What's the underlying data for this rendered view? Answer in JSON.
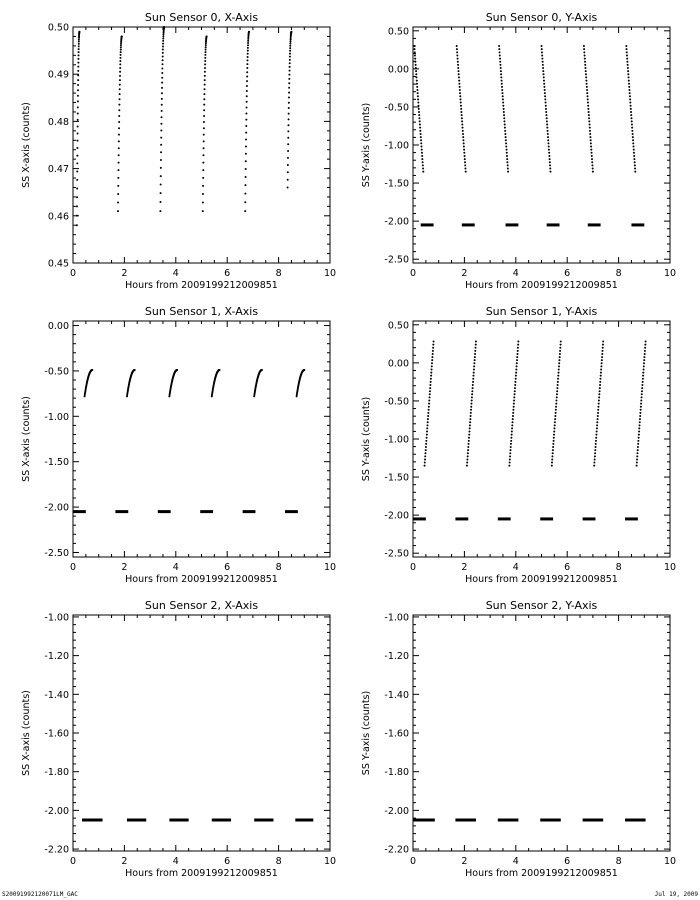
{
  "footer": {
    "left": "S20091992120071LM_GAC",
    "right": "Jul 19, 2009"
  },
  "chart_data": [
    {
      "type": "scatter",
      "title": "Sun Sensor 0, X-Axis",
      "xlabel": "Hours from 2009199212009851",
      "ylabel": "SS X-axis (counts)",
      "xlim": [
        0,
        10
      ],
      "ylim": [
        0.45,
        0.5
      ],
      "x_ticks": [
        "0",
        "2",
        "4",
        "6",
        "8",
        "10"
      ],
      "y_ticks": [
        "0.45",
        "0.46",
        "0.47",
        "0.48",
        "0.49",
        "0.50"
      ],
      "series": [
        {
          "kind": "arc",
          "segments": [
            {
              "x_start": 0.15,
              "x_end": 0.25,
              "y_start": 0.458,
              "y_end": 0.499
            },
            {
              "x_start": 1.75,
              "x_end": 1.9,
              "y_start": 0.461,
              "y_end": 0.498
            },
            {
              "x_start": 3.4,
              "x_end": 3.55,
              "y_start": 0.461,
              "y_end": 0.5
            },
            {
              "x_start": 5.05,
              "x_end": 5.2,
              "y_start": 0.461,
              "y_end": 0.498
            },
            {
              "x_start": 6.7,
              "x_end": 6.85,
              "y_start": 0.461,
              "y_end": 0.499
            },
            {
              "x_start": 8.35,
              "x_end": 8.5,
              "y_start": 0.466,
              "y_end": 0.499
            }
          ]
        }
      ]
    },
    {
      "type": "scatter",
      "title": "Sun Sensor 0, Y-Axis",
      "xlabel": "Hours from 2009199212009851",
      "ylabel": "SS Y-axis (counts)",
      "xlim": [
        0,
        10
      ],
      "ylim": [
        -2.55,
        0.55
      ],
      "x_ticks": [
        "0",
        "2",
        "4",
        "6",
        "8",
        "10"
      ],
      "y_ticks": [
        "-2.50",
        "-2.00",
        "-1.50",
        "-1.00",
        "-0.50",
        "0.00",
        "0.50"
      ],
      "series": [
        {
          "kind": "line",
          "segments": [
            {
              "x_start": 0.05,
              "x_end": 0.4,
              "y_start": 0.3,
              "y_end": -1.35
            },
            {
              "x_start": 1.7,
              "x_end": 2.05,
              "y_start": 0.3,
              "y_end": -1.35
            },
            {
              "x_start": 3.35,
              "x_end": 3.7,
              "y_start": 0.3,
              "y_end": -1.35
            },
            {
              "x_start": 5.0,
              "x_end": 5.35,
              "y_start": 0.3,
              "y_end": -1.35
            },
            {
              "x_start": 6.65,
              "x_end": 7.0,
              "y_start": 0.3,
              "y_end": -1.35
            },
            {
              "x_start": 8.3,
              "x_end": 8.65,
              "y_start": 0.3,
              "y_end": -1.35
            }
          ]
        },
        {
          "kind": "dash",
          "segments": [
            {
              "x_start": 0.3,
              "x_end": 0.8,
              "y_start": -2.05,
              "y_end": -2.05
            },
            {
              "x_start": 1.9,
              "x_end": 2.4,
              "y_start": -2.05,
              "y_end": -2.05
            },
            {
              "x_start": 3.6,
              "x_end": 4.1,
              "y_start": -2.05,
              "y_end": -2.05
            },
            {
              "x_start": 5.2,
              "x_end": 5.7,
              "y_start": -2.05,
              "y_end": -2.05
            },
            {
              "x_start": 6.8,
              "x_end": 7.3,
              "y_start": -2.05,
              "y_end": -2.05
            },
            {
              "x_start": 8.5,
              "x_end": 9.0,
              "y_start": -2.05,
              "y_end": -2.05
            }
          ]
        }
      ]
    },
    {
      "type": "scatter",
      "title": "Sun Sensor 1, X-Axis",
      "xlabel": "Hours from 2009199212009851",
      "ylabel": "SS X-axis (counts)",
      "xlim": [
        0,
        10
      ],
      "ylim": [
        -2.55,
        0.05
      ],
      "x_ticks": [
        "0",
        "2",
        "4",
        "6",
        "8",
        "10"
      ],
      "y_ticks": [
        "-2.50",
        "-2.00",
        "-1.50",
        "-1.00",
        "-0.50",
        "0.00"
      ],
      "series": [
        {
          "kind": "arc",
          "segments": [
            {
              "x_start": 0.45,
              "x_end": 0.75,
              "y_start": -0.78,
              "y_end": -0.49
            },
            {
              "x_start": 2.1,
              "x_end": 2.4,
              "y_start": -0.78,
              "y_end": -0.49
            },
            {
              "x_start": 3.75,
              "x_end": 4.05,
              "y_start": -0.78,
              "y_end": -0.49
            },
            {
              "x_start": 5.4,
              "x_end": 5.7,
              "y_start": -0.78,
              "y_end": -0.49
            },
            {
              "x_start": 7.05,
              "x_end": 7.35,
              "y_start": -0.78,
              "y_end": -0.49
            },
            {
              "x_start": 8.7,
              "x_end": 9.0,
              "y_start": -0.78,
              "y_end": -0.49
            }
          ]
        },
        {
          "kind": "dash",
          "segments": [
            {
              "x_start": 0.0,
              "x_end": 0.5,
              "y_start": -2.05,
              "y_end": -2.05
            },
            {
              "x_start": 1.65,
              "x_end": 2.15,
              "y_start": -2.05,
              "y_end": -2.05
            },
            {
              "x_start": 3.3,
              "x_end": 3.8,
              "y_start": -2.05,
              "y_end": -2.05
            },
            {
              "x_start": 4.95,
              "x_end": 5.45,
              "y_start": -2.05,
              "y_end": -2.05
            },
            {
              "x_start": 6.6,
              "x_end": 7.1,
              "y_start": -2.05,
              "y_end": -2.05
            },
            {
              "x_start": 8.25,
              "x_end": 8.75,
              "y_start": -2.05,
              "y_end": -2.05
            }
          ]
        }
      ]
    },
    {
      "type": "scatter",
      "title": "Sun Sensor 1, Y-Axis",
      "xlabel": "Hours from 2009199212009851",
      "ylabel": "SS Y-axis (counts)",
      "xlim": [
        0,
        10
      ],
      "ylim": [
        -2.55,
        0.55
      ],
      "x_ticks": [
        "0",
        "2",
        "4",
        "6",
        "8",
        "10"
      ],
      "y_ticks": [
        "-2.50",
        "-2.00",
        "-1.50",
        "-1.00",
        "-0.50",
        "0.00",
        "0.50"
      ],
      "series": [
        {
          "kind": "line",
          "segments": [
            {
              "x_start": 0.45,
              "x_end": 0.8,
              "y_start": -1.35,
              "y_end": 0.28
            },
            {
              "x_start": 2.1,
              "x_end": 2.45,
              "y_start": -1.35,
              "y_end": 0.28
            },
            {
              "x_start": 3.75,
              "x_end": 4.1,
              "y_start": -1.35,
              "y_end": 0.28
            },
            {
              "x_start": 5.4,
              "x_end": 5.75,
              "y_start": -1.35,
              "y_end": 0.28
            },
            {
              "x_start": 7.05,
              "x_end": 7.4,
              "y_start": -1.35,
              "y_end": 0.28
            },
            {
              "x_start": 8.7,
              "x_end": 9.05,
              "y_start": -1.35,
              "y_end": 0.28
            }
          ]
        },
        {
          "kind": "dash",
          "segments": [
            {
              "x_start": 0.0,
              "x_end": 0.5,
              "y_start": -2.05,
              "y_end": -2.05
            },
            {
              "x_start": 1.65,
              "x_end": 2.15,
              "y_start": -2.05,
              "y_end": -2.05
            },
            {
              "x_start": 3.3,
              "x_end": 3.8,
              "y_start": -2.05,
              "y_end": -2.05
            },
            {
              "x_start": 4.95,
              "x_end": 5.45,
              "y_start": -2.05,
              "y_end": -2.05
            },
            {
              "x_start": 6.6,
              "x_end": 7.1,
              "y_start": -2.05,
              "y_end": -2.05
            },
            {
              "x_start": 8.25,
              "x_end": 8.75,
              "y_start": -2.05,
              "y_end": -2.05
            }
          ]
        }
      ]
    },
    {
      "type": "scatter",
      "title": "Sun Sensor 2, X-Axis",
      "xlabel": "Hours from 2009199212009851",
      "ylabel": "SS X-axis (counts)",
      "xlim": [
        0,
        10
      ],
      "ylim": [
        -2.21,
        -0.99
      ],
      "x_ticks": [
        "0",
        "2",
        "4",
        "6",
        "8",
        "10"
      ],
      "y_ticks": [
        "-2.20",
        "-2.00",
        "-1.80",
        "-1.60",
        "-1.40",
        "-1.20",
        "-1.00"
      ],
      "series": [
        {
          "kind": "dash",
          "segments": [
            {
              "x_start": 0.35,
              "x_end": 1.15,
              "y_start": -2.05,
              "y_end": -2.05
            },
            {
              "x_start": 2.1,
              "x_end": 2.85,
              "y_start": -2.05,
              "y_end": -2.05
            },
            {
              "x_start": 3.75,
              "x_end": 4.5,
              "y_start": -2.05,
              "y_end": -2.05
            },
            {
              "x_start": 5.4,
              "x_end": 6.15,
              "y_start": -2.05,
              "y_end": -2.05
            },
            {
              "x_start": 7.05,
              "x_end": 7.8,
              "y_start": -2.05,
              "y_end": -2.05
            },
            {
              "x_start": 8.65,
              "x_end": 9.35,
              "y_start": -2.05,
              "y_end": -2.05
            }
          ]
        }
      ]
    },
    {
      "type": "scatter",
      "title": "Sun Sensor 2, Y-Axis",
      "xlabel": "Hours from 2009199212009851",
      "ylabel": "SS Y-axis (counts)",
      "xlim": [
        0,
        10
      ],
      "ylim": [
        -2.21,
        -0.99
      ],
      "x_ticks": [
        "0",
        "2",
        "4",
        "6",
        "8",
        "10"
      ],
      "y_ticks": [
        "-2.20",
        "-2.00",
        "-1.80",
        "-1.60",
        "-1.40",
        "-1.20",
        "-1.00"
      ],
      "series": [
        {
          "kind": "dash",
          "segments": [
            {
              "x_start": 0.0,
              "x_end": 0.85,
              "y_start": -2.05,
              "y_end": -2.05
            },
            {
              "x_start": 1.65,
              "x_end": 2.45,
              "y_start": -2.05,
              "y_end": -2.05
            },
            {
              "x_start": 3.3,
              "x_end": 4.1,
              "y_start": -2.05,
              "y_end": -2.05
            },
            {
              "x_start": 4.95,
              "x_end": 5.75,
              "y_start": -2.05,
              "y_end": -2.05
            },
            {
              "x_start": 6.6,
              "x_end": 7.4,
              "y_start": -2.05,
              "y_end": -2.05
            },
            {
              "x_start": 8.25,
              "x_end": 9.05,
              "y_start": -2.05,
              "y_end": -2.05
            }
          ]
        }
      ]
    }
  ]
}
